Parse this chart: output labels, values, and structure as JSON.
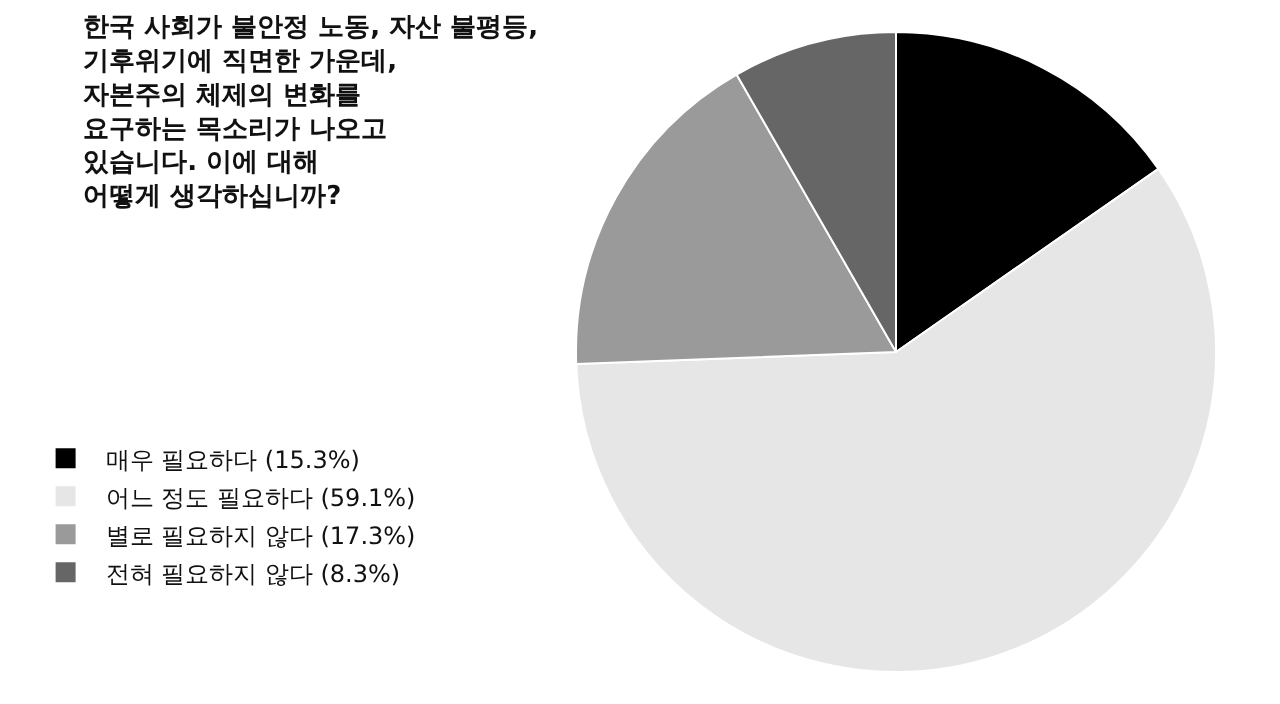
{
  "chart_data": {
    "type": "pie",
    "title": "한국 사회가 불안정 노동, 자산 불평등,\n기후위기에 직면한 가운데,\n자본주의 체제의 변화를\n요구하는 목소리가 나오고\n있습니다. 이에 대해\n어떻게 생각하십니까?",
    "categories": [
      "매우 필요하다 (15.3%)",
      "어느 정도 필요하다 (59.1%)",
      "별로 필요하지 않다 (17.3%)",
      "전혀 필요하지 않다 (8.3%)"
    ],
    "values": [
      15.3,
      59.1,
      17.3,
      8.3
    ],
    "colors": [
      "#000000",
      "#e6e6e6",
      "#9a9a9a",
      "#666666"
    ],
    "legend": "left"
  }
}
